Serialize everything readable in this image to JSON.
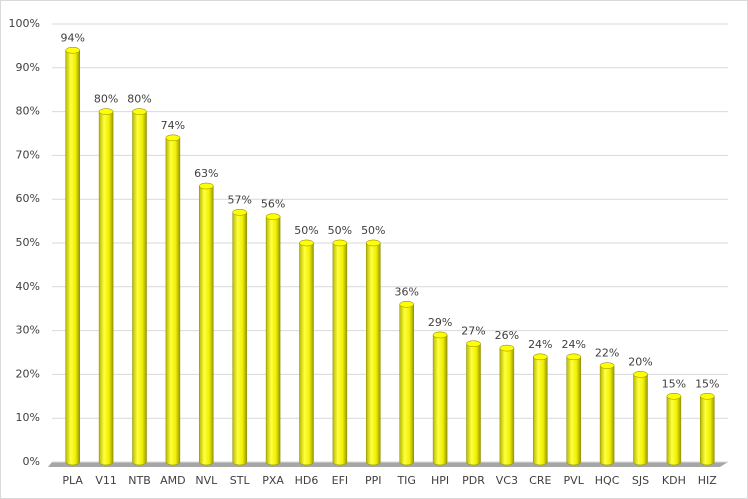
{
  "chart_data": {
    "type": "bar",
    "categories": [
      "PLA",
      "V11",
      "NTB",
      "AMD",
      "NVL",
      "STL",
      "PXA",
      "HD6",
      "EFI",
      "PPI",
      "TIG",
      "HPI",
      "PDR",
      "VC3",
      "CRE",
      "PVL",
      "HQC",
      "SJS",
      "KDH",
      "HIZ"
    ],
    "values": [
      94,
      80,
      80,
      74,
      63,
      57,
      56,
      50,
      50,
      50,
      36,
      29,
      27,
      26,
      24,
      24,
      22,
      20,
      15,
      15
    ],
    "value_labels": [
      "94%",
      "80%",
      "80%",
      "74%",
      "63%",
      "57%",
      "56%",
      "50%",
      "50%",
      "50%",
      "36%",
      "29%",
      "27%",
      "26%",
      "24%",
      "24%",
      "22%",
      "20%",
      "15%",
      "15%"
    ],
    "color": "#ffff00",
    "ylim": [
      0,
      100
    ],
    "yticks": [
      {
        "value": 0,
        "label": "0%"
      },
      {
        "value": 10,
        "label": "10%"
      },
      {
        "value": 20,
        "label": "20%"
      },
      {
        "value": 30,
        "label": "30%"
      },
      {
        "value": 40,
        "label": "40%"
      },
      {
        "value": 50,
        "label": "50%"
      },
      {
        "value": 60,
        "label": "60%"
      },
      {
        "value": 70,
        "label": "70%"
      },
      {
        "value": 80,
        "label": "80%"
      },
      {
        "value": 90,
        "label": "90%"
      },
      {
        "value": 100,
        "label": "100%"
      }
    ],
    "grid": true
  }
}
